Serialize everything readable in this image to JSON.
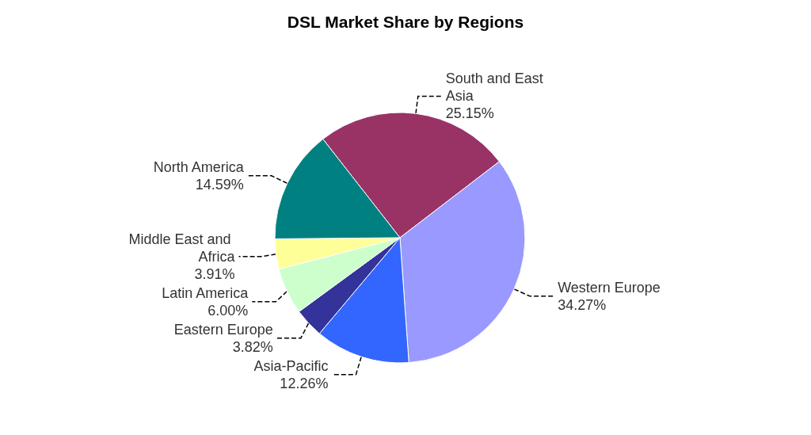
{
  "chart_data": {
    "type": "pie",
    "title": "DSL Market Share by Regions",
    "categories": [
      "South and East Asia",
      "Western Europe",
      "Asia-Pacific",
      "Eastern Europe",
      "Latin America",
      "Middle East and Africa",
      "North America"
    ],
    "values": [
      25.15,
      34.27,
      12.26,
      3.82,
      6.0,
      3.91,
      14.59
    ],
    "value_labels": [
      "25.15%",
      "34.27%",
      "12.26%",
      "3.82%",
      "6.00%",
      "3.91%",
      "14.59%"
    ],
    "colors": [
      "#993366",
      "#9999ff",
      "#3366ff",
      "#333399",
      "#ccffcc",
      "#ffff99",
      "#008080"
    ]
  }
}
